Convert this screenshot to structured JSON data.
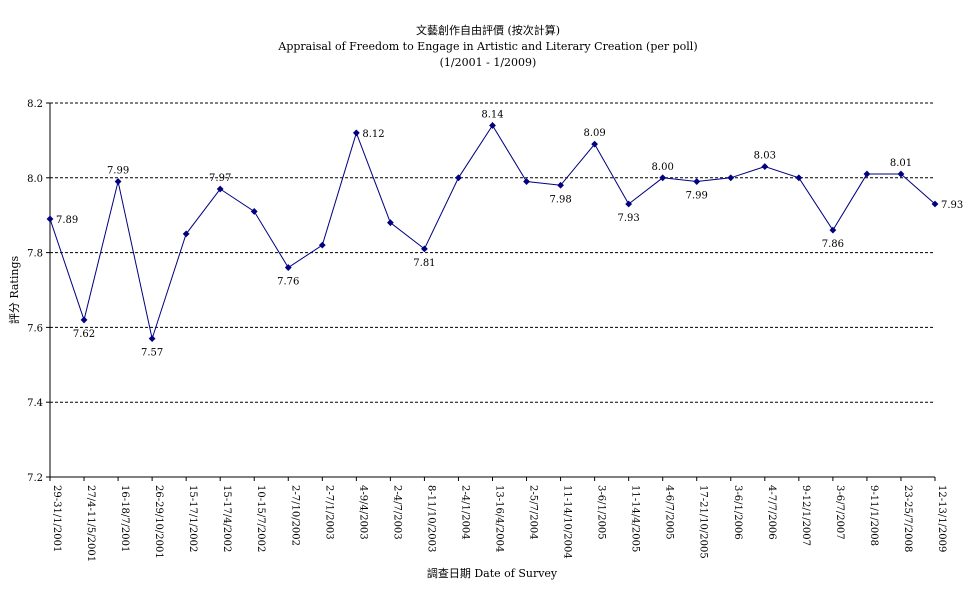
{
  "chart_data": {
    "type": "line",
    "title_zh": "文藝創作自由評價 (按次計算)",
    "title": "Appraisal of Freedom to Engage in Artistic and Literary Creation (per poll)",
    "subtitle": "(1/2001 - 1/2009)",
    "xlabel": "調查日期 Date of Survey",
    "ylabel": "評分 Ratings",
    "ylim": [
      7.2,
      8.2
    ],
    "yticks": [
      "7.2",
      "7.4",
      "7.6",
      "7.8",
      "8.0",
      "8.2"
    ],
    "grid": true,
    "line_color": "#000080",
    "categories": [
      "29-31/1/2001",
      "27/4-11/5/2001",
      "16-18/7/2001",
      "26-29/10/2001",
      "15-17/1/2002",
      "15-17/4/2002",
      "10-15/7/2002",
      "2-7/10/2002",
      "2-7/1/2003",
      "4-9/4/2003",
      "2-4/7/2003",
      "8-11/10/2003",
      "2-4/1/2004",
      "13-16/4/2004",
      "2-5/7/2004",
      "11-14/10/2004",
      "3-6/1/2005",
      "11-14/4/2005",
      "4-6/7/2005",
      "17-21/10/2005",
      "3-6/1/2006",
      "4-7/7/2006",
      "9-12/1/2007",
      "3-6/7/2007",
      "9-11/1/2008",
      "23-25/7/2008",
      "12-13/1/2009"
    ],
    "values": [
      7.89,
      7.62,
      7.99,
      7.57,
      7.85,
      7.97,
      7.91,
      7.76,
      7.82,
      8.12,
      7.88,
      7.81,
      8.0,
      8.14,
      7.99,
      7.98,
      8.09,
      7.93,
      8.0,
      7.99,
      8.0,
      8.03,
      8.0,
      7.86,
      8.01,
      8.01,
      7.93
    ],
    "data_labels": [
      "7.89",
      "7.62",
      "7.99",
      "7.57",
      null,
      "7.97",
      null,
      "7.76",
      null,
      "8.12",
      null,
      "7.81",
      null,
      "8.14",
      null,
      "7.98",
      "8.09",
      "7.93",
      "8.00",
      "7.99",
      null,
      "8.03",
      null,
      "7.86",
      null,
      "8.01",
      "7.93"
    ]
  }
}
